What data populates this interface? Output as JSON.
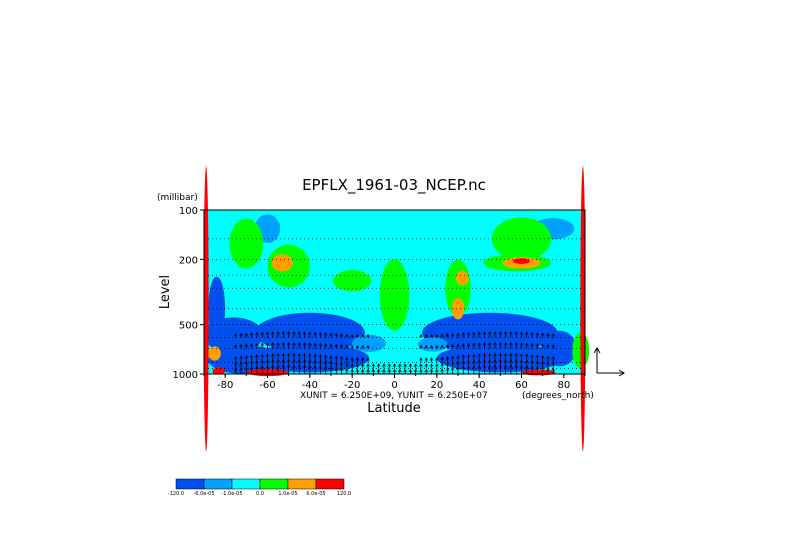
{
  "chart_data": {
    "type": "heatmap",
    "title": "EPFLX_1961-03_NCEP.nc",
    "xlabel": "Latitude",
    "ylabel": "Level",
    "y_unit_label": "(millibar)",
    "x_unit_label": "(degrees_north)",
    "vector_scale_label": "XUNIT = 6.250E+09, YUNIT = 6.250E+07",
    "xlim": [
      -90,
      90
    ],
    "ylim": [
      1000,
      100
    ],
    "y_scale": "log",
    "x_ticks": [
      -80,
      -60,
      -40,
      -20,
      0,
      20,
      40,
      60,
      80
    ],
    "x_tick_labels": [
      "-80",
      "-60",
      "-40",
      "-20",
      "0",
      "20",
      "40",
      "60",
      "80"
    ],
    "y_ticks": [
      1000,
      500,
      200,
      100
    ],
    "y_tick_labels": [
      "1000",
      "500",
      "200",
      "100"
    ],
    "grid": "dotted",
    "legend": {
      "position": "bottom-left",
      "colors": [
        "#0050f0",
        "#00a0ff",
        "#00ffff",
        "#00ff00",
        "#ffa000",
        "#ff0000"
      ],
      "labels": [
        "-120.0",
        "-6.0e-05",
        "-1.0e-05",
        "0.0",
        "1.0e-05",
        "6.0e-05",
        "120.0"
      ],
      "boundaries": [
        -120.0,
        -6e-05,
        -1e-05,
        0.0,
        1e-05,
        6e-05,
        120.0
      ]
    },
    "regions": [
      {
        "level": 0,
        "lat": -84,
        "p": 400,
        "rlat": 4,
        "rp": 0.45
      },
      {
        "level": 0,
        "lat": -76,
        "p": 580,
        "rlat": 14,
        "rp": 0.25
      },
      {
        "level": 0,
        "lat": -40,
        "p": 560,
        "rlat": 26,
        "rp": 0.28
      },
      {
        "level": 0,
        "lat": 45,
        "p": 560,
        "rlat": 32,
        "rp": 0.28
      },
      {
        "level": 0,
        "lat": -70,
        "p": 820,
        "rlat": 18,
        "rp": 0.2
      },
      {
        "level": 0,
        "lat": -40,
        "p": 800,
        "rlat": 28,
        "rp": 0.2
      },
      {
        "level": 0,
        "lat": 50,
        "p": 800,
        "rlat": 30,
        "rp": 0.2
      },
      {
        "level": 0,
        "lat": 78,
        "p": 700,
        "rlat": 8,
        "rp": 0.25
      },
      {
        "level": 1,
        "lat": -12,
        "p": 650,
        "rlat": 8,
        "rp": 0.12
      },
      {
        "level": 1,
        "lat": 18,
        "p": 660,
        "rlat": 7,
        "rp": 0.1
      },
      {
        "level": 1,
        "lat": -60,
        "p": 130,
        "rlat": 6,
        "rp": 0.2
      },
      {
        "level": 1,
        "lat": 75,
        "p": 130,
        "rlat": 10,
        "rp": 0.15
      },
      {
        "level": 3,
        "lat": -70,
        "p": 160,
        "rlat": 8,
        "rp": 0.35
      },
      {
        "level": 3,
        "lat": -50,
        "p": 220,
        "rlat": 10,
        "rp": 0.3
      },
      {
        "level": 3,
        "lat": -20,
        "p": 270,
        "rlat": 9,
        "rp": 0.15
      },
      {
        "level": 3,
        "lat": 0,
        "p": 330,
        "rlat": 7,
        "rp": 0.5
      },
      {
        "level": 3,
        "lat": 30,
        "p": 300,
        "rlat": 6,
        "rp": 0.4
      },
      {
        "level": 3,
        "lat": 60,
        "p": 150,
        "rlat": 14,
        "rp": 0.3
      },
      {
        "level": 3,
        "lat": 58,
        "p": 210,
        "rlat": 16,
        "rp": 0.12
      },
      {
        "level": 3,
        "lat": 88,
        "p": 720,
        "rlat": 4,
        "rp": 0.25
      },
      {
        "level": 4,
        "lat": -53,
        "p": 210,
        "rlat": 5,
        "rp": 0.12
      },
      {
        "level": 4,
        "lat": 30,
        "p": 400,
        "rlat": 3,
        "rp": 0.15
      },
      {
        "level": 4,
        "lat": 60,
        "p": 210,
        "rlat": 9,
        "rp": 0.08
      },
      {
        "level": 4,
        "lat": 32,
        "p": 260,
        "rlat": 3,
        "rp": 0.1
      },
      {
        "level": 4,
        "lat": -85,
        "p": 750,
        "rlat": 3,
        "rp": 0.1
      },
      {
        "level": 5,
        "lat": -60,
        "p": 980,
        "rlat": 10,
        "rp": 0.05
      },
      {
        "level": 5,
        "lat": -83,
        "p": 960,
        "rlat": 3,
        "rp": 0.05
      },
      {
        "level": 5,
        "lat": 68,
        "p": 980,
        "rlat": 8,
        "rp": 0.04
      },
      {
        "level": 5,
        "lat": -89,
        "p": 400,
        "rlat": 1.2,
        "rp": 2.0
      },
      {
        "level": 5,
        "lat": 89,
        "p": 400,
        "rlat": 1.2,
        "rp": 2.0
      },
      {
        "level": 5,
        "lat": 60,
        "p": 205,
        "rlat": 4,
        "rp": 0.04
      }
    ],
    "vectors": {
      "lat_range": [
        -75,
        75
      ],
      "lat_step": 2.5,
      "levels": [
        1000,
        925,
        850,
        700,
        600
      ],
      "description": "upward EP flux arrows in lower troposphere"
    }
  }
}
